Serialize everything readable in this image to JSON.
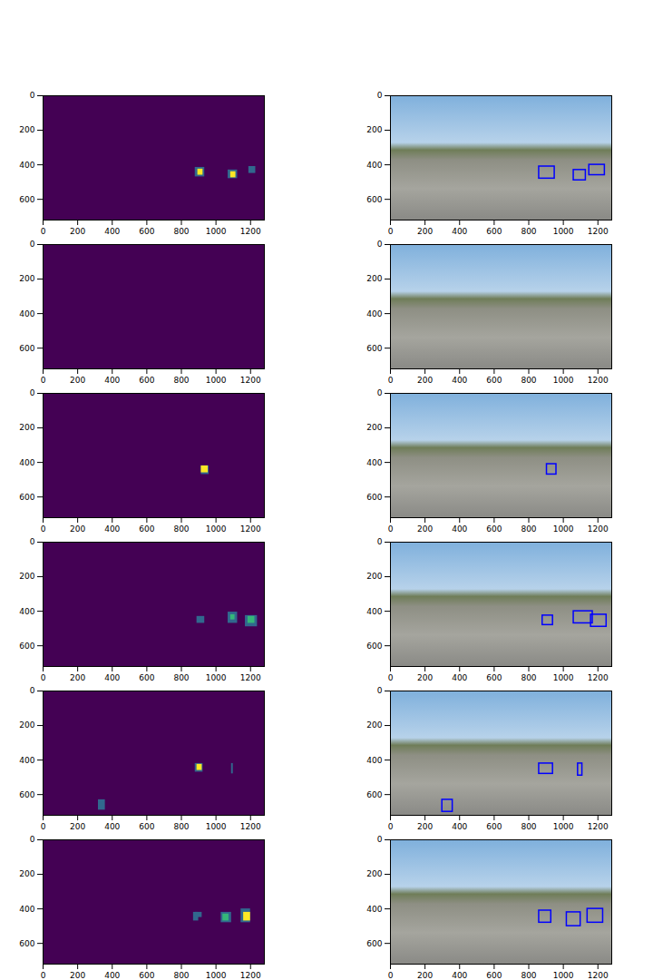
{
  "chart_data": [
    {
      "type": "heatmap",
      "xlim": [
        0,
        1280
      ],
      "ylim": [
        0,
        720
      ],
      "xticks": [
        0,
        200,
        400,
        600,
        800,
        1000,
        1200
      ],
      "yticks": [
        0,
        200,
        400,
        600
      ],
      "color": "viridis",
      "zlim": [
        0,
        3
      ],
      "cells": [
        [
          880,
          415,
          935,
          470,
          1
        ],
        [
          895,
          425,
          925,
          460,
          3
        ],
        [
          1070,
          430,
          1125,
          480,
          1
        ],
        [
          1085,
          440,
          1115,
          475,
          3
        ],
        [
          1190,
          410,
          1230,
          450,
          1
        ]
      ]
    },
    {
      "type": "image",
      "xlim": [
        0,
        1280
      ],
      "ylim": [
        0,
        720
      ],
      "xticks": [
        0,
        200,
        400,
        600,
        800,
        1000,
        1200
      ],
      "yticks": [
        0,
        200,
        400,
        600
      ],
      "color": "#0000ff",
      "boxes": [
        [
          860,
          410,
          950,
          480
        ],
        [
          1060,
          430,
          1130,
          490
        ],
        [
          1150,
          400,
          1240,
          460
        ]
      ]
    },
    {
      "type": "heatmap",
      "xlim": [
        0,
        1280
      ],
      "ylim": [
        0,
        720
      ],
      "xticks": [
        0,
        200,
        400,
        600,
        800,
        1000,
        1200
      ],
      "yticks": [
        0,
        200,
        400,
        600
      ],
      "color": "viridis",
      "zlim": [
        0,
        3
      ],
      "cells": []
    },
    {
      "type": "image",
      "xlim": [
        0,
        1280
      ],
      "ylim": [
        0,
        720
      ],
      "xticks": [
        0,
        200,
        400,
        600,
        800,
        1000,
        1200
      ],
      "yticks": [
        0,
        200,
        400,
        600
      ],
      "color": "#0000ff",
      "boxes": []
    },
    {
      "type": "heatmap",
      "xlim": [
        0,
        1280
      ],
      "ylim": [
        0,
        720
      ],
      "xticks": [
        0,
        200,
        400,
        600,
        800,
        1000,
        1200
      ],
      "yticks": [
        0,
        200,
        400,
        600
      ],
      "color": "viridis",
      "zlim": [
        0,
        3
      ],
      "cells": [
        [
          915,
          420,
          960,
          470,
          1
        ],
        [
          915,
          420,
          955,
          460,
          3
        ]
      ]
    },
    {
      "type": "image",
      "xlim": [
        0,
        1280
      ],
      "ylim": [
        0,
        720
      ],
      "xticks": [
        0,
        200,
        400,
        600,
        800,
        1000,
        1200
      ],
      "yticks": [
        0,
        200,
        400,
        600
      ],
      "color": "#0000ff",
      "boxes": [
        [
          905,
          410,
          960,
          470
        ]
      ]
    },
    {
      "type": "heatmap",
      "xlim": [
        0,
        1280
      ],
      "ylim": [
        0,
        720
      ],
      "xticks": [
        0,
        200,
        400,
        600,
        800,
        1000,
        1200
      ],
      "yticks": [
        0,
        200,
        400,
        600
      ],
      "color": "viridis",
      "zlim": [
        0,
        3
      ],
      "cells": [
        [
          890,
          430,
          935,
          470,
          1
        ],
        [
          1070,
          405,
          1125,
          470,
          1
        ],
        [
          1085,
          420,
          1110,
          450,
          2
        ],
        [
          1170,
          425,
          1240,
          490,
          1
        ],
        [
          1185,
          430,
          1225,
          470,
          2
        ]
      ]
    },
    {
      "type": "image",
      "xlim": [
        0,
        1280
      ],
      "ylim": [
        0,
        720
      ],
      "xticks": [
        0,
        200,
        400,
        600,
        800,
        1000,
        1200
      ],
      "yticks": [
        0,
        200,
        400,
        600
      ],
      "color": "#0000ff",
      "boxes": [
        [
          880,
          425,
          940,
          480
        ],
        [
          1060,
          400,
          1170,
          470
        ],
        [
          1160,
          420,
          1250,
          490
        ]
      ]
    },
    {
      "type": "heatmap",
      "xlim": [
        0,
        1280
      ],
      "ylim": [
        0,
        720
      ],
      "xticks": [
        0,
        200,
        400,
        600,
        800,
        1000,
        1200
      ],
      "yticks": [
        0,
        200,
        400,
        600
      ],
      "color": "viridis",
      "zlim": [
        0,
        3
      ],
      "cells": [
        [
          320,
          630,
          360,
          690,
          1
        ],
        [
          880,
          420,
          925,
          470,
          1
        ],
        [
          890,
          425,
          920,
          460,
          3
        ],
        [
          1090,
          420,
          1100,
          480,
          1
        ]
      ]
    },
    {
      "type": "image",
      "xlim": [
        0,
        1280
      ],
      "ylim": [
        0,
        720
      ],
      "xticks": [
        0,
        200,
        400,
        600,
        800,
        1000,
        1200
      ],
      "yticks": [
        0,
        200,
        400,
        600
      ],
      "color": "#0000ff",
      "boxes": [
        [
          300,
          630,
          360,
          700
        ],
        [
          860,
          420,
          940,
          480
        ],
        [
          1085,
          420,
          1110,
          490
        ]
      ]
    },
    {
      "type": "heatmap",
      "xlim": [
        0,
        1280
      ],
      "ylim": [
        0,
        720
      ],
      "xticks": [
        0,
        200,
        400,
        600,
        800,
        1000,
        1200
      ],
      "yticks": [
        0,
        200,
        400,
        600
      ],
      "color": "viridis",
      "zlim": [
        0,
        3
      ],
      "cells": [
        [
          870,
          420,
          900,
          470,
          1
        ],
        [
          880,
          420,
          920,
          450,
          1
        ],
        [
          1030,
          420,
          1090,
          480,
          1
        ],
        [
          1040,
          430,
          1075,
          470,
          2
        ],
        [
          1145,
          400,
          1200,
          480,
          1
        ],
        [
          1160,
          420,
          1200,
          470,
          3
        ]
      ]
    },
    {
      "type": "image",
      "xlim": [
        0,
        1280
      ],
      "ylim": [
        0,
        720
      ],
      "xticks": [
        0,
        200,
        400,
        600,
        800,
        1000,
        1200
      ],
      "yticks": [
        0,
        200,
        400,
        600
      ],
      "color": "#0000ff",
      "boxes": [
        [
          860,
          410,
          930,
          480
        ],
        [
          1020,
          420,
          1100,
          500
        ],
        [
          1140,
          400,
          1230,
          480
        ]
      ]
    }
  ]
}
